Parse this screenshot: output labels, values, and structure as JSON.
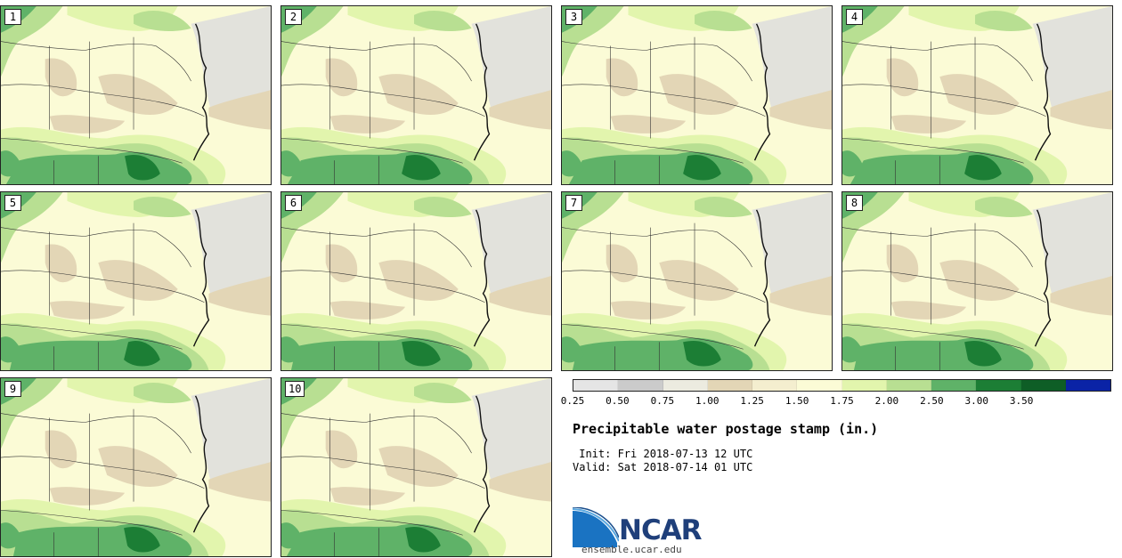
{
  "panels": [
    {
      "label": "1"
    },
    {
      "label": "2"
    },
    {
      "label": "3"
    },
    {
      "label": "4"
    },
    {
      "label": "5"
    },
    {
      "label": "6"
    },
    {
      "label": "7"
    },
    {
      "label": "8"
    },
    {
      "label": "9"
    },
    {
      "label": "10"
    }
  ],
  "legend": {
    "colors": [
      "#e5e5e5",
      "#cbcbcb",
      "#ecebe0",
      "#e3d6b6",
      "#f4eecf",
      "#fbfbd6",
      "#e2f5ad",
      "#b8df92",
      "#5fb268",
      "#1c7e35",
      "#0e5e26",
      "#0a23a6"
    ],
    "ticks": [
      "0.25",
      "0.50",
      "0.75",
      "1.00",
      "1.25",
      "1.50",
      "1.75",
      "2.00",
      "2.50",
      "3.00",
      "3.50"
    ]
  },
  "title": "Precipitable water postage stamp (in.)",
  "init": " Init: Fri 2018-07-13 12 UTC",
  "valid": "Valid: Sat 2018-07-14 01 UTC",
  "logo": {
    "wordmark": "NCAR",
    "site": "ensemble.ucar.edu"
  },
  "colors": {
    "land_pale": "#fbfbd6",
    "tan": "#e3d6b6",
    "light_green": "#e2f5ad",
    "mid_green": "#b8df92",
    "green": "#5fb268",
    "dark_green": "#1c7e35",
    "ocean_gray": "#e2e2dc",
    "logo_blue": "#1f3f7a"
  }
}
